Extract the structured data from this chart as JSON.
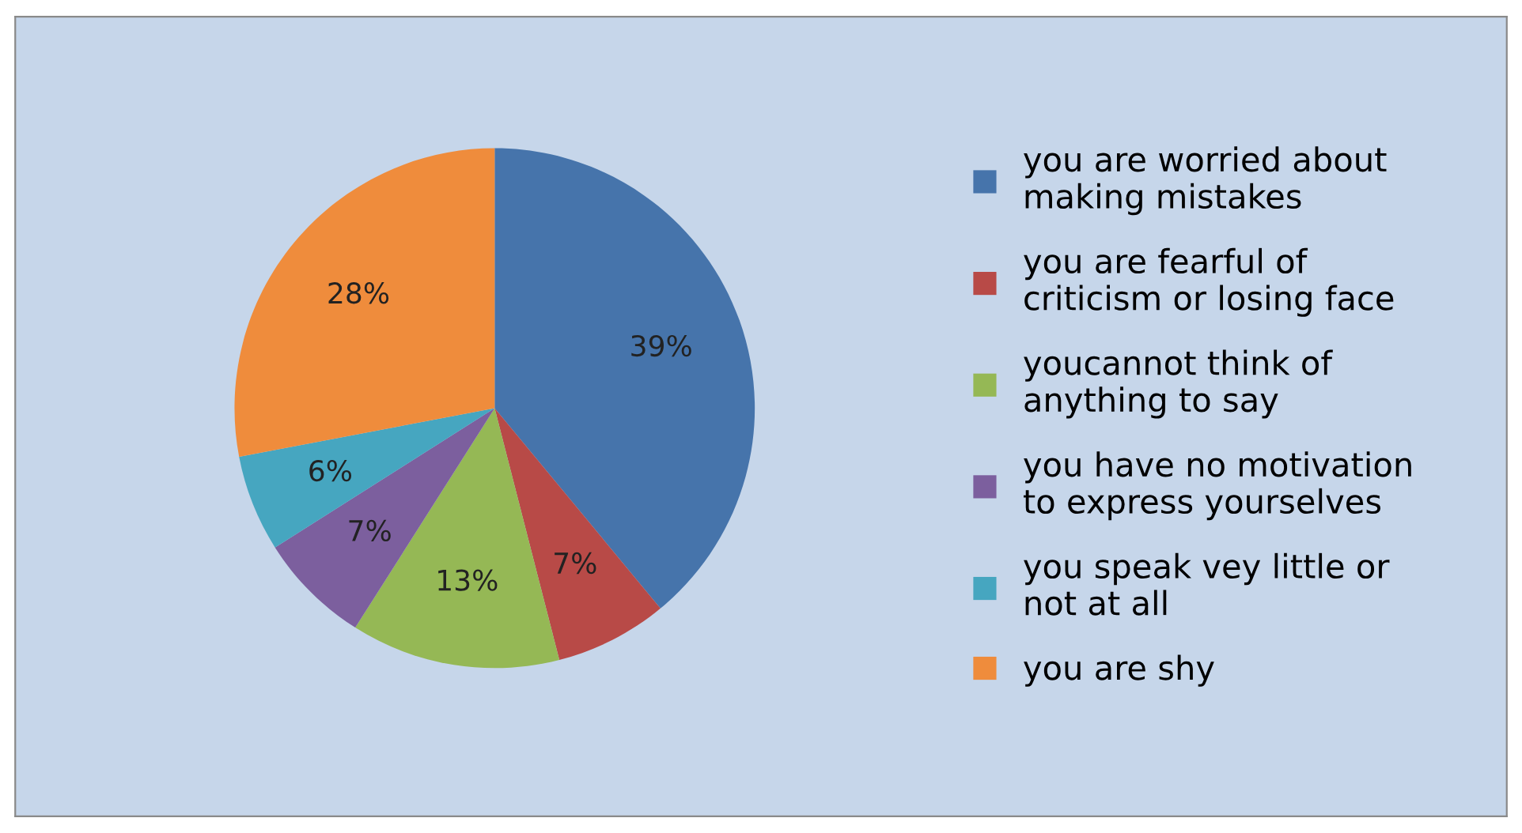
{
  "chart_data": {
    "type": "pie",
    "categories": [
      "you are worried about making mistakes",
      "you are fearful of criticism or losing face",
      "youcannot think of anything to say",
      "you have no motivation to express yourselves",
      "you speak vey little or not at all",
      "you are shy"
    ],
    "values": [
      39,
      7,
      13,
      7,
      6,
      28
    ],
    "colors": [
      "#4674ab",
      "#b84a47",
      "#95b855",
      "#7c5f9e",
      "#46a6c0",
      "#ef8c3c"
    ],
    "value_labels": [
      "39%",
      "7%",
      "13%",
      "7%",
      "6%",
      "28%"
    ],
    "legend": "right"
  }
}
